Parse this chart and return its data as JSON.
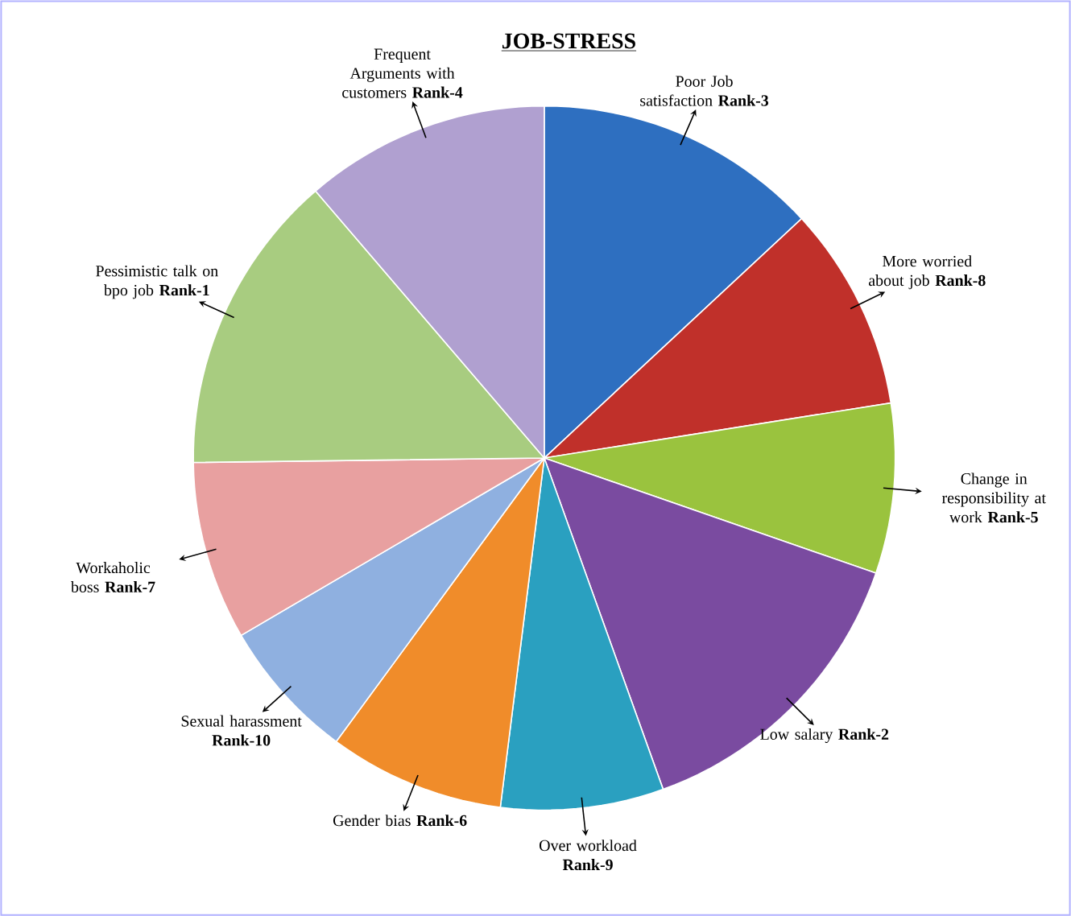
{
  "chart_data": {
    "type": "pie",
    "title": "JOB-STRESS",
    "categories": [
      "Poor Job satisfaction **Rank-3**",
      "More worried about job **Rank-8**",
      "Change in responsibility at work **Rank-5**",
      "Low salary **Rank-2**",
      "Over workload **Rank-9**",
      "Gender bias **Rank-6**",
      "Sexual harassment **Rank-10**",
      "Workaholic boss **Rank-7**",
      "Pessimistic talk on bpo job **Rank-1**",
      "Frequent Arguments with customers **Rank-4**"
    ],
    "values": [
      13.1,
      9.4,
      7.8,
      14.2,
      7.5,
      8.1,
      6.5,
      8.2,
      13.9,
      11.3
    ],
    "colors": [
      "#2e6fc0",
      "#c0302a",
      "#9ac33e",
      "#7a4ba0",
      "#2aa0c0",
      "#f08c2a",
      "#8fb0e0",
      "#e8a0a0",
      "#a8cc80",
      "#b0a0d0"
    ]
  }
}
